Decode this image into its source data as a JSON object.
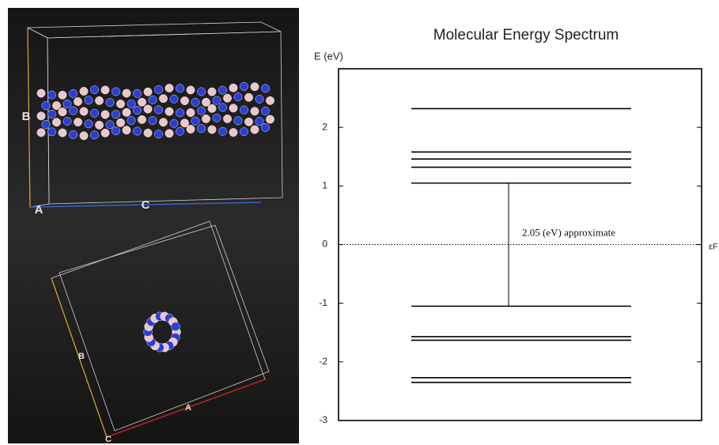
{
  "chart_data": {
    "type": "energy-levels",
    "title": "Molecular Energy Spectrum",
    "y_label": "E (eV)",
    "levels": [
      2.32,
      1.58,
      1.46,
      1.32,
      1.05,
      -1.05,
      -1.57,
      -1.63,
      -2.27,
      -2.35
    ],
    "color": "#000000",
    "gap_annotation": "2.05 (eV) approximate",
    "fermi_level": 0,
    "fermi_label": "εF",
    "ylim": [
      -3,
      3
    ],
    "yticks": [
      -3,
      -2,
      -1,
      0,
      1,
      2
    ]
  },
  "structure_views": [
    {
      "labels": [
        "B",
        "A",
        "C"
      ]
    },
    {
      "labels": [
        "B",
        "A",
        "C"
      ]
    }
  ]
}
